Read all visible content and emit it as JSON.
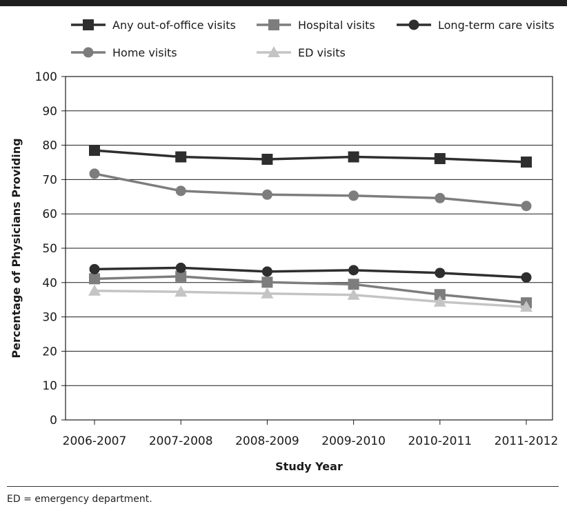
{
  "chart_data": {
    "type": "line",
    "categories": [
      "2006-2007",
      "2007-2008",
      "2008-2009",
      "2009-2010",
      "2010-2011",
      "2011-2012"
    ],
    "xlabel": "Study Year",
    "ylabel": "Percentage of Physicians Providing",
    "ylim": [
      0,
      100
    ],
    "yticks": [
      0,
      10,
      20,
      30,
      40,
      50,
      60,
      70,
      80,
      90,
      100
    ],
    "grid": "horizontal",
    "legend_position": "top",
    "series": [
      {
        "name": "Any out-of-office visits",
        "marker": "square",
        "color": "#2e2e2e",
        "values": [
          78.5,
          76.6,
          75.9,
          76.6,
          76.1,
          75.1
        ]
      },
      {
        "name": "Hospital visits",
        "marker": "square",
        "color": "#7d7d7d",
        "values": [
          41.1,
          41.8,
          40.1,
          39.5,
          36.5,
          34.1
        ]
      },
      {
        "name": "Long-term care visits",
        "marker": "circle",
        "color": "#2e2e2e",
        "values": [
          43.9,
          44.3,
          43.2,
          43.6,
          42.8,
          41.5
        ]
      },
      {
        "name": "Home visits",
        "marker": "circle",
        "color": "#7d7d7d",
        "values": [
          71.7,
          66.7,
          65.6,
          65.3,
          64.6,
          62.3
        ]
      },
      {
        "name": "ED visits",
        "marker": "triangle",
        "color": "#c4c4c4",
        "values": [
          37.6,
          37.3,
          36.8,
          36.4,
          34.4,
          32.9
        ]
      }
    ]
  },
  "footnote": "ED = emergency department."
}
